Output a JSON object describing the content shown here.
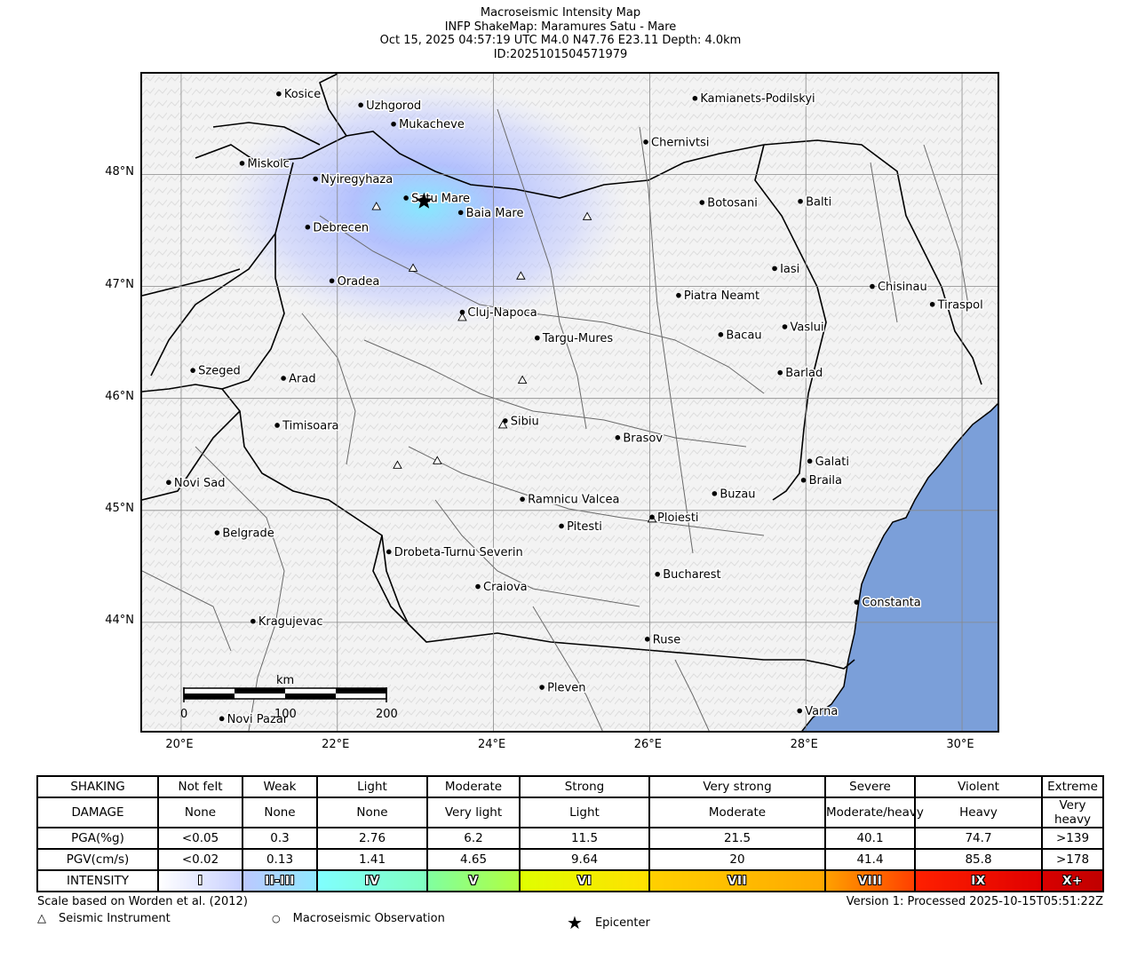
{
  "title": {
    "line1": "Macroseismic Intensity Map",
    "line2": "INFP ShakeMap: Maramures Satu - Mare",
    "line3": "Oct 15, 2025 04:57:19 UTC M4.0 N47.76 E23.11 Depth: 4.0km",
    "line4": "ID:2025101504571979"
  },
  "map": {
    "lat_labels": [
      "48°N",
      "47°N",
      "46°N",
      "45°N",
      "44°N"
    ],
    "lon_labels": [
      "20°E",
      "22°E",
      "24°E",
      "26°E",
      "28°E",
      "30°E"
    ],
    "extent": {
      "lon_min": 19.5,
      "lon_max": 30.5,
      "lat_min": 43.0,
      "lat_max": 48.9
    },
    "epicenter": {
      "lon": 23.11,
      "lat": 47.76
    },
    "colors": {
      "sea": "#7b9fd9",
      "land": "#f3f3f3"
    },
    "cities": [
      {
        "name": "Kosice",
        "lon": 21.25,
        "lat": 48.72
      },
      {
        "name": "Uzhgorod",
        "lon": 22.3,
        "lat": 48.62
      },
      {
        "name": "Mukacheve",
        "lon": 22.72,
        "lat": 48.45
      },
      {
        "name": "Kamianets-Podilskyi",
        "lon": 26.58,
        "lat": 48.68
      },
      {
        "name": "Chernivtsi",
        "lon": 25.95,
        "lat": 48.29
      },
      {
        "name": "Miskolc",
        "lon": 20.78,
        "lat": 48.1
      },
      {
        "name": "Nyiregyhaza",
        "lon": 21.72,
        "lat": 47.96
      },
      {
        "name": "Satu Mare",
        "lon": 22.88,
        "lat": 47.79
      },
      {
        "name": "Baia Mare",
        "lon": 23.58,
        "lat": 47.66
      },
      {
        "name": "Botosani",
        "lon": 26.67,
        "lat": 47.75
      },
      {
        "name": "Balti",
        "lon": 27.93,
        "lat": 47.76
      },
      {
        "name": "Debrecen",
        "lon": 21.62,
        "lat": 47.53
      },
      {
        "name": "Iasi",
        "lon": 27.6,
        "lat": 47.16
      },
      {
        "name": "Oradea",
        "lon": 21.93,
        "lat": 47.05
      },
      {
        "name": "Chisinau",
        "lon": 28.85,
        "lat": 47.0
      },
      {
        "name": "Piatra Neamt",
        "lon": 26.37,
        "lat": 46.92
      },
      {
        "name": "Tiraspol",
        "lon": 29.62,
        "lat": 46.84
      },
      {
        "name": "Cluj-Napoca",
        "lon": 23.6,
        "lat": 46.77
      },
      {
        "name": "Targu-Mures",
        "lon": 24.56,
        "lat": 46.54
      },
      {
        "name": "Bacau",
        "lon": 26.91,
        "lat": 46.57
      },
      {
        "name": "Vaslui",
        "lon": 27.73,
        "lat": 46.64
      },
      {
        "name": "Szeged",
        "lon": 20.15,
        "lat": 46.25
      },
      {
        "name": "Arad",
        "lon": 21.31,
        "lat": 46.18
      },
      {
        "name": "Barlad",
        "lon": 27.67,
        "lat": 46.23
      },
      {
        "name": "Sibiu",
        "lon": 24.15,
        "lat": 45.8
      },
      {
        "name": "Timisoara",
        "lon": 21.23,
        "lat": 45.76
      },
      {
        "name": "Brasov",
        "lon": 25.59,
        "lat": 45.65
      },
      {
        "name": "Galati",
        "lon": 28.05,
        "lat": 45.44
      },
      {
        "name": "Novi Sad",
        "lon": 19.84,
        "lat": 45.25
      },
      {
        "name": "Braila",
        "lon": 27.97,
        "lat": 45.27
      },
      {
        "name": "Buzau",
        "lon": 26.83,
        "lat": 45.15
      },
      {
        "name": "Ramnicu Valcea",
        "lon": 24.37,
        "lat": 45.1
      },
      {
        "name": "Ploiesti",
        "lon": 26.03,
        "lat": 44.94
      },
      {
        "name": "Belgrade",
        "lon": 20.46,
        "lat": 44.8
      },
      {
        "name": "Pitesti",
        "lon": 24.87,
        "lat": 44.86
      },
      {
        "name": "Drobeta-Turnu Severin",
        "lon": 22.66,
        "lat": 44.63
      },
      {
        "name": "Bucharest",
        "lon": 26.1,
        "lat": 44.43
      },
      {
        "name": "Craiova",
        "lon": 23.8,
        "lat": 44.32
      },
      {
        "name": "Constanta",
        "lon": 28.65,
        "lat": 44.18
      },
      {
        "name": "Kragujevac",
        "lon": 20.92,
        "lat": 44.01
      },
      {
        "name": "Ruse",
        "lon": 25.97,
        "lat": 43.85
      },
      {
        "name": "Pleven",
        "lon": 24.62,
        "lat": 43.42
      },
      {
        "name": "Novi Pazar",
        "lon": 20.52,
        "lat": 43.14
      },
      {
        "name": "Varna",
        "lon": 27.92,
        "lat": 43.21
      }
    ],
    "stations": [
      {
        "lon": 22.5,
        "lat": 47.71
      },
      {
        "lon": 22.97,
        "lat": 47.16
      },
      {
        "lon": 24.35,
        "lat": 47.09
      },
      {
        "lon": 25.2,
        "lat": 47.62
      },
      {
        "lon": 23.6,
        "lat": 46.72
      },
      {
        "lon": 24.37,
        "lat": 46.16
      },
      {
        "lon": 24.12,
        "lat": 45.76
      },
      {
        "lon": 23.28,
        "lat": 45.44
      },
      {
        "lon": 22.77,
        "lat": 45.4
      },
      {
        "lon": 26.03,
        "lat": 44.92
      }
    ],
    "scale_bar": {
      "unit": "km",
      "ticks": [
        "0",
        "100",
        "200"
      ]
    }
  },
  "scale_table": {
    "rows": [
      {
        "head": "SHAKING",
        "cells": [
          "Not felt",
          "Weak",
          "Light",
          "Moderate",
          "Strong",
          "Very strong",
          "Severe",
          "Violent",
          "Extreme"
        ]
      },
      {
        "head": "DAMAGE",
        "cells": [
          "None",
          "None",
          "None",
          "Very light",
          "Light",
          "Moderate",
          "Moderate/heavy",
          "Heavy",
          "Very heavy"
        ]
      },
      {
        "head": "PGA(%g)",
        "cells": [
          "<0.05",
          "0.3",
          "2.76",
          "6.2",
          "11.5",
          "21.5",
          "40.1",
          "74.7",
          ">139"
        ]
      },
      {
        "head": "PGV(cm/s)",
        "cells": [
          "<0.02",
          "0.13",
          "1.41",
          "4.65",
          "9.64",
          "20",
          "41.4",
          "85.8",
          ">178"
        ]
      }
    ],
    "intensity_head": "INTENSITY",
    "intensity": [
      "I",
      "II-III",
      "IV",
      "V",
      "VI",
      "VII",
      "VIII",
      "IX",
      "X+"
    ],
    "intensity_colors": [
      [
        "#ffffff",
        "#c8d0ff"
      ],
      [
        "#bcc8ff",
        "#90e8ff"
      ],
      [
        "#80ffff",
        "#80ffc0"
      ],
      [
        "#80ffa0",
        "#b0ff40"
      ],
      [
        "#e0ff00",
        "#ffe000"
      ],
      [
        "#ffd000",
        "#ffa800"
      ],
      [
        "#ffa000",
        "#ff4000"
      ],
      [
        "#ff2000",
        "#e00000"
      ],
      [
        "#d80000",
        "#c00000"
      ]
    ]
  },
  "footer": {
    "scale_note": "Scale based on Worden et al. (2012)",
    "version": "Version 1: Processed 2025-10-15T05:51:22Z",
    "legend_instrument": "Seismic Instrument",
    "legend_observation": "Macroseismic Observation",
    "legend_epicenter": "Epicenter"
  }
}
